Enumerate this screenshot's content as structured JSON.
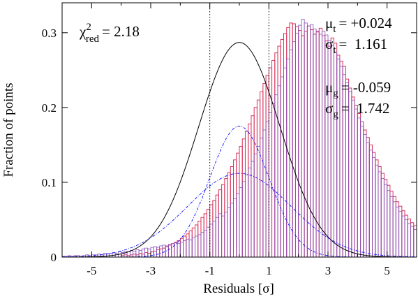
{
  "chart_data": {
    "type": "bar",
    "xlabel": "Residuals [σ]",
    "ylabel": "Fraction of points",
    "xlim": [
      -6,
      6
    ],
    "ylim": [
      0,
      0.34
    ],
    "xticks": [
      -5,
      -3,
      -1,
      1,
      3,
      5
    ],
    "yticks": [
      0,
      0.1,
      0.2,
      0.3
    ],
    "xtick_labels": [
      "-5",
      "-3",
      "-1",
      "1",
      "3",
      "5"
    ],
    "ytick_labels": [
      "0",
      "0.1",
      "0.2",
      "0.3"
    ],
    "vertical_lines": [
      -1,
      1
    ],
    "grid": false,
    "histograms": [
      {
        "color": "#d9325c",
        "bin_width": 0.1,
        "x_start": -4.0,
        "values": [
          0.002,
          0.003,
          0.002,
          0.003,
          0.004,
          0.003,
          0.005,
          0.004,
          0.006,
          0.005,
          0.007,
          0.008,
          0.01,
          0.011,
          0.012,
          0.014,
          0.016,
          0.018,
          0.02,
          0.022,
          0.025,
          0.028,
          0.031,
          0.035,
          0.039,
          0.043,
          0.048,
          0.053,
          0.058,
          0.064,
          0.07,
          0.076,
          0.083,
          0.09,
          0.097,
          0.105,
          0.113,
          0.121,
          0.13,
          0.139,
          0.148,
          0.158,
          0.168,
          0.178,
          0.189,
          0.2,
          0.21,
          0.221,
          0.232,
          0.243,
          0.253,
          0.263,
          0.273,
          0.282,
          0.291,
          0.299,
          0.307,
          0.313,
          0.312,
          0.308,
          0.303,
          0.296,
          0.302,
          0.309,
          0.304,
          0.298,
          0.301,
          0.306,
          0.296,
          0.289,
          0.282,
          0.293,
          0.286,
          0.27,
          0.262,
          0.255,
          0.238,
          0.226,
          0.214,
          0.203,
          0.192,
          0.181,
          0.17,
          0.16,
          0.15,
          0.14,
          0.13,
          0.121,
          0.112,
          0.104,
          0.096,
          0.088,
          0.081,
          0.074,
          0.068,
          0.062,
          0.056,
          0.051,
          0.046,
          0.042,
          0.038,
          0.034,
          0.031,
          0.028,
          0.025,
          0.022,
          0.02,
          0.018,
          0.016,
          0.014,
          0.012,
          0.011,
          0.01,
          0.008,
          0.007,
          0.006,
          0.005,
          0.004,
          0.004,
          0.003,
          0.002
        ]
      },
      {
        "color": "#8a4fb8",
        "bin_width": 0.1,
        "x_start": -6.0,
        "values": [
          0.001,
          0.001,
          0.002,
          0.001,
          0.002,
          0.002,
          0.001,
          0.002,
          0.003,
          0.002,
          0.003,
          0.003,
          0.004,
          0.003,
          0.005,
          0.004,
          0.005,
          0.006,
          0.005,
          0.007,
          0.006,
          0.008,
          0.007,
          0.009,
          0.008,
          0.01,
          0.009,
          0.011,
          0.012,
          0.011,
          0.013,
          0.014,
          0.013,
          0.015,
          0.016,
          0.015,
          0.017,
          0.018,
          0.019,
          0.018,
          0.02,
          0.022,
          0.024,
          0.023,
          0.026,
          0.028,
          0.03,
          0.033,
          0.036,
          0.04,
          0.044,
          0.048,
          0.053,
          0.058,
          0.055,
          0.06,
          0.066,
          0.072,
          0.078,
          0.085,
          0.093,
          0.101,
          0.11,
          0.119,
          0.128,
          0.138,
          0.148,
          0.159,
          0.17,
          0.181,
          0.193,
          0.205,
          0.217,
          0.229,
          0.241,
          0.253,
          0.265,
          0.277,
          0.288,
          0.299,
          0.31,
          0.318,
          0.313,
          0.309,
          0.311,
          0.305,
          0.302,
          0.298,
          0.302,
          0.297,
          0.29,
          0.283,
          0.274,
          0.265,
          0.255,
          0.244,
          0.233,
          0.221,
          0.21,
          0.198,
          0.186,
          0.175,
          0.164,
          0.153,
          0.143,
          0.133,
          0.123,
          0.114,
          0.105,
          0.097,
          0.089,
          0.081,
          0.074,
          0.067,
          0.061,
          0.055,
          0.05,
          0.045,
          0.041,
          0.037,
          0.033,
          0.03,
          0.027,
          0.024,
          0.021,
          0.019,
          0.017,
          0.015,
          0.013,
          0.012,
          0.01,
          0.009,
          0.008,
          0.007,
          0.006,
          0.005,
          0.005,
          0.004,
          0.004,
          0.003,
          0.003,
          0.002,
          0.002,
          0.002,
          0.001,
          0.001,
          0.001,
          0.001,
          0.001
        ]
      }
    ],
    "curves": [
      {
        "style": "solid",
        "color": "#000000",
        "mu": 0.0,
        "sigma": 1.38,
        "amp": 0.287
      },
      {
        "style": "dash-dot",
        "color": "#1a1aff",
        "mu": 0.0,
        "sigma": 1.0,
        "amp": 0.175
      },
      {
        "style": "dash-dot",
        "color": "#1a1aff",
        "mu": 0.0,
        "sigma": 1.75,
        "amp": 0.112
      }
    ],
    "annotations": {
      "chi": {
        "base": "χ",
        "sup": "2",
        "sub": "red",
        "value": "= 2.18"
      },
      "mu_t": {
        "base": "μ",
        "sub": "t",
        "value": "= +0.024"
      },
      "sigma_t": {
        "base": "σ",
        "sub": "t",
        "value": "=  1.161"
      },
      "mu_g": {
        "base": "μ",
        "sub": "g",
        "value": "= -0.059"
      },
      "sigma_g": {
        "base": "σ",
        "sub": "g",
        "value": "=  1.742"
      }
    }
  }
}
